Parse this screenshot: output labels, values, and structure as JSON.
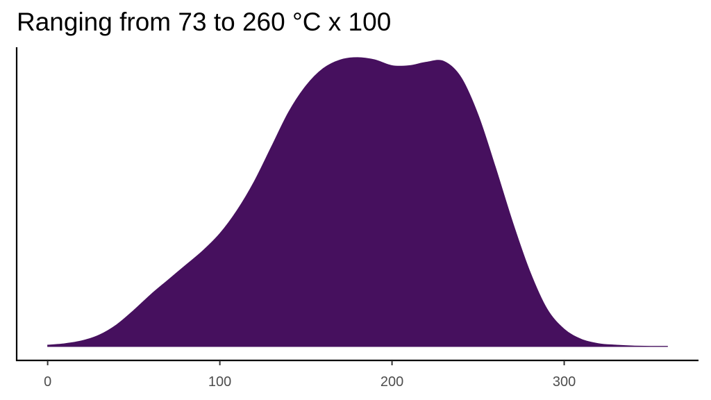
{
  "chart_data": {
    "type": "area",
    "title": "Ranging from 73 to 260 °C x 100",
    "xlabel": "",
    "ylabel": "",
    "xlim": [
      -18,
      378
    ],
    "ylim": [
      0,
      1
    ],
    "x_ticks": [
      0,
      100,
      200,
      300
    ],
    "x_tick_labels": [
      "0",
      "100",
      "200",
      "300"
    ],
    "y_ticks": [],
    "grid": false,
    "fill_color": "#46105e",
    "axis_color": "#000000",
    "tick_label_color": "#4d4d4d",
    "series": [
      {
        "x": [
          0,
          10,
          20,
          30,
          40,
          50,
          60,
          70,
          80,
          90,
          100,
          110,
          120,
          130,
          140,
          150,
          160,
          170,
          180,
          190,
          200,
          210,
          220,
          230,
          240,
          250,
          260,
          270,
          280,
          290,
          300,
          310,
          320,
          330,
          340,
          350,
          360
        ],
        "y": [
          0.005,
          0.01,
          0.02,
          0.04,
          0.075,
          0.125,
          0.18,
          0.23,
          0.28,
          0.33,
          0.39,
          0.47,
          0.57,
          0.69,
          0.81,
          0.9,
          0.96,
          0.99,
          0.998,
          0.99,
          0.97,
          0.97,
          0.982,
          0.985,
          0.93,
          0.8,
          0.62,
          0.43,
          0.26,
          0.13,
          0.06,
          0.025,
          0.01,
          0.005,
          0.002,
          0.001,
          0.001
        ]
      }
    ]
  }
}
